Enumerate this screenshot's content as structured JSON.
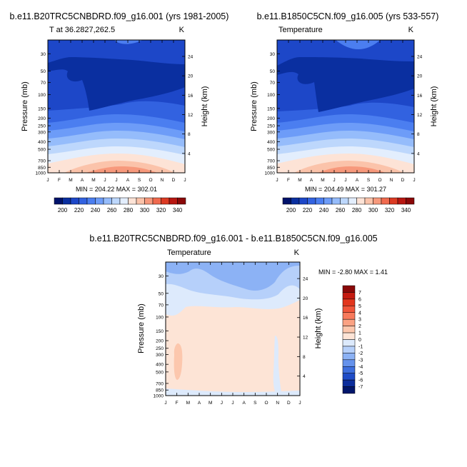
{
  "chart_data": [
    {
      "type": "contour",
      "title": "b.e11.B20TRC5CNBDRD.f09_g16.001 (yrs 1981-2005)",
      "left_label": "T at 36.2827,262.5",
      "right_label": "K",
      "xlabel": "",
      "ylabel": "Pressure (mb)",
      "ylabel_right": "Height (km)",
      "x_ticks": [
        "J",
        "F",
        "M",
        "A",
        "M",
        "J",
        "J",
        "A",
        "S",
        "O",
        "N",
        "D",
        "J"
      ],
      "y_ticks": [
        "30",
        "50",
        "70",
        "100",
        "150",
        "200",
        "250",
        "300",
        "400",
        "500",
        "700",
        "850",
        "1000"
      ],
      "y_ticks_right": [
        "24",
        "20",
        "16",
        "12",
        "8",
        "4"
      ],
      "ylim": [
        1000,
        20
      ],
      "y_scale": "log",
      "stats": "MIN = 204.22  MAX = 302.01",
      "min": 204.22,
      "max": 302.01,
      "colorbar": {
        "levels": [
          200,
          210,
          220,
          230,
          240,
          250,
          260,
          270,
          280,
          290,
          300,
          310,
          320,
          330,
          340
        ],
        "tick_labels": [
          "200",
          "220",
          "240",
          "260",
          "280",
          "300",
          "320",
          "340"
        ]
      }
    },
    {
      "type": "contour",
      "title": "b.e11.B1850C5CN.f09_g16.005 (yrs 533-557)",
      "left_label": "Temperature",
      "right_label": "K",
      "xlabel": "",
      "ylabel": "Pressure (mb)",
      "ylabel_right": "Height (km)",
      "x_ticks": [
        "J",
        "F",
        "M",
        "A",
        "M",
        "J",
        "J",
        "A",
        "S",
        "O",
        "N",
        "D",
        "J"
      ],
      "y_ticks": [
        "30",
        "50",
        "70",
        "100",
        "150",
        "200",
        "250",
        "300",
        "400",
        "500",
        "700",
        "850",
        "1000"
      ],
      "y_ticks_right": [
        "24",
        "20",
        "16",
        "12",
        "8",
        "4"
      ],
      "ylim": [
        1000,
        20
      ],
      "y_scale": "log",
      "stats": "MIN = 204.49  MAX = 301.27",
      "min": 204.49,
      "max": 301.27,
      "colorbar": {
        "levels": [
          200,
          210,
          220,
          230,
          240,
          250,
          260,
          270,
          280,
          290,
          300,
          310,
          320,
          330,
          340
        ],
        "tick_labels": [
          "200",
          "220",
          "240",
          "260",
          "280",
          "300",
          "320",
          "340"
        ]
      }
    },
    {
      "type": "contour",
      "title": "b.e11.B20TRC5CNBDRD.f09_g16.001 - b.e11.B1850C5CN.f09_g16.005",
      "left_label": "Temperature",
      "right_label": "K",
      "xlabel": "",
      "ylabel": "Pressure (mb)",
      "ylabel_right": "Height (km)",
      "x_ticks": [
        "J",
        "F",
        "M",
        "A",
        "M",
        "J",
        "J",
        "A",
        "S",
        "O",
        "N",
        "D",
        "J"
      ],
      "y_ticks": [
        "30",
        "50",
        "70",
        "100",
        "150",
        "200",
        "250",
        "300",
        "400",
        "500",
        "700",
        "850",
        "1000"
      ],
      "y_ticks_right": [
        "24",
        "20",
        "16",
        "12",
        "8",
        "4"
      ],
      "ylim": [
        1000,
        20
      ],
      "y_scale": "log",
      "stats": "MIN =  -2.80 MAX =   1.41",
      "min": -2.8,
      "max": 1.41,
      "colorbar": {
        "levels": [
          7,
          6,
          5,
          4,
          3,
          2,
          1,
          0,
          -1,
          -2,
          -3,
          -4,
          -5,
          -6,
          -7
        ],
        "tick_labels": [
          "7",
          "6",
          "5",
          "4",
          "3",
          "2",
          "1",
          "0",
          "-1",
          "-2",
          "-3",
          "-4",
          "-5",
          "-6",
          "-7"
        ]
      }
    }
  ],
  "colors": {
    "temp_scale": [
      "#00126b",
      "#0a2fa0",
      "#1d47c8",
      "#3262e0",
      "#4b7ef0",
      "#6d9cf8",
      "#95bcfb",
      "#bdd7fc",
      "#e3eefd",
      "#fde3d6",
      "#fbc3aa",
      "#f7997c",
      "#f06a4e",
      "#dc3a23",
      "#b81711",
      "#8a0808"
    ],
    "diff_scale": [
      "#8a0808",
      "#c41a10",
      "#e2361d",
      "#f0553a",
      "#f77a5c",
      "#fba283",
      "#fcc7ad",
      "#fde4d6",
      "#ddeafc",
      "#b6d0fa",
      "#8cb2f5",
      "#6592ec",
      "#3e6fde",
      "#1f4cc7",
      "#0c2d9c",
      "#02166b"
    ]
  }
}
